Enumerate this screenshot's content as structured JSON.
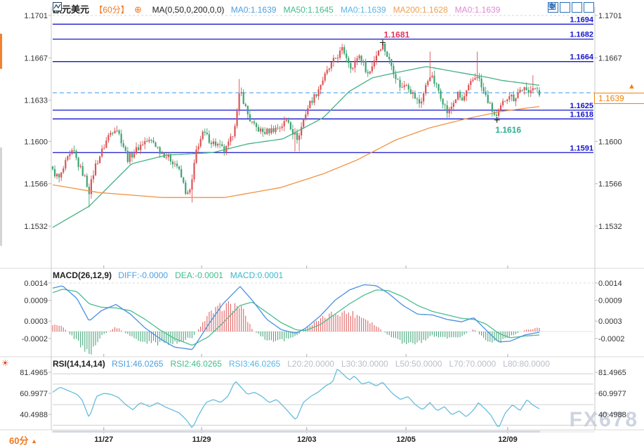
{
  "header": {
    "symbol": "欧元美元",
    "timeframe": "【60分】",
    "add_indicator_icon": "circled-plus",
    "chart_type_icon": "line-chart",
    "ma_label": "MA(0,50,0,200,0,0)",
    "ma_items": [
      {
        "name": "ma0-value",
        "text": "MA0:1.1639",
        "color": "#4d9fe0"
      },
      {
        "name": "ma50-value",
        "text": "MA50:1.1645",
        "color": "#41bd8c"
      },
      {
        "name": "ma0b-value",
        "text": "MA0:1.1639",
        "color": "#56b6e8"
      },
      {
        "name": "ma200-value",
        "text": "MA200:1.1628",
        "color": "#f0a04e"
      },
      {
        "name": "ma0c-value",
        "text": "MA0:1.1639",
        "color": "#e08ad2"
      }
    ]
  },
  "toolbar": {
    "icons": [
      "crosshair",
      "pane-down",
      "pane-up",
      "popout"
    ]
  },
  "macd_header": {
    "label": "MACD(26,12,9)",
    "items": [
      {
        "name": "diff-value",
        "text": "DIFF:-0.0000",
        "color": "#4d9fe0"
      },
      {
        "name": "dea-value",
        "text": "DEA:-0.0001",
        "color": "#41bd8c"
      },
      {
        "name": "macd-value",
        "text": "MACD:0.0001",
        "color": "#38b8cc"
      }
    ]
  },
  "rsi_header": {
    "label": "RSI(14,14,14)",
    "items": [
      {
        "name": "rsi1-value",
        "text": "RSI1:46.0265",
        "color": "#4d9fe0"
      },
      {
        "name": "rsi2-value",
        "text": "RSI2:46.0265",
        "color": "#41bd8c"
      },
      {
        "name": "rsi3-value",
        "text": "RSI3:46.0265",
        "color": "#56b6e8"
      },
      {
        "name": "l20-level",
        "text": "L20:20.0000",
        "color": "#b9bec6"
      },
      {
        "name": "l30-level",
        "text": "L30:30.0000",
        "color": "#b9bec6"
      },
      {
        "name": "l50-level",
        "text": "L50:50.0000",
        "color": "#b9bec6"
      },
      {
        "name": "l70-level",
        "text": "L70:70.0000",
        "color": "#b9bec6"
      },
      {
        "name": "l80-level",
        "text": "L80:80.0000",
        "color": "#b9bec6"
      }
    ]
  },
  "price_box": {
    "value": "1.1639",
    "color": "#f5820a",
    "arrow": "▲"
  },
  "footer": {
    "timeframe_label": "60分",
    "arrow": "▲"
  },
  "watermark": "FX678",
  "colors": {
    "up": "#dd5356",
    "down": "#3ea473",
    "ma50": "#44b184",
    "ma200": "#f09344",
    "level_blue": "#1414cc",
    "dashed_price": "#4da3e8",
    "diff_line": "#4a90e0",
    "dea_line": "#4cbd8e",
    "hist_pos": "#e06464",
    "hist_neg": "#4aa87c",
    "rsi_line": "#66bede",
    "axis_text": "#333333",
    "grid": "#d8d8d8"
  },
  "chart_data": {
    "type": "candlestick",
    "symbol": "EUR/USD 欧元美元",
    "interval_minutes": 60,
    "panes": [
      "price",
      "MACD",
      "RSI"
    ],
    "price_axis_ticks": [
      1.1701,
      1.1667,
      1.1633,
      1.16,
      1.1566,
      1.1532
    ],
    "price_axis_ticks_right": [
      1.1701,
      1.1667,
      1.16,
      1.1566,
      1.1532
    ],
    "levels": [
      1.1694,
      1.1682,
      1.1664,
      1.1625,
      1.1618,
      1.1591
    ],
    "current_price": 1.1639,
    "high_annotation": {
      "price": 1.1681,
      "x_frac": 0.678
    },
    "low_annotation": {
      "price": 1.1616,
      "x_frac": 0.913
    },
    "x_dates": [
      [
        "11/27",
        0.105
      ],
      [
        "11/29",
        0.306
      ],
      [
        "12/03",
        0.522
      ],
      [
        "12/05",
        0.726
      ],
      [
        "12/09",
        0.935
      ]
    ],
    "candles_n": 228,
    "close_anchors": [
      [
        0.0,
        1.1576
      ],
      [
        0.014,
        1.157
      ],
      [
        0.029,
        1.1585
      ],
      [
        0.043,
        1.1592
      ],
      [
        0.053,
        1.1581
      ],
      [
        0.065,
        1.1572
      ],
      [
        0.075,
        1.156
      ],
      [
        0.087,
        1.158
      ],
      [
        0.101,
        1.1592
      ],
      [
        0.115,
        1.1605
      ],
      [
        0.13,
        1.1612
      ],
      [
        0.144,
        1.1598
      ],
      [
        0.154,
        1.1586
      ],
      [
        0.169,
        1.1592
      ],
      [
        0.188,
        1.16
      ],
      [
        0.206,
        1.16
      ],
      [
        0.221,
        1.1592
      ],
      [
        0.238,
        1.1587
      ],
      [
        0.255,
        1.1581
      ],
      [
        0.267,
        1.1568
      ],
      [
        0.276,
        1.1556
      ],
      [
        0.284,
        1.1562
      ],
      [
        0.296,
        1.1595
      ],
      [
        0.31,
        1.1607
      ],
      [
        0.325,
        1.16
      ],
      [
        0.339,
        1.1597
      ],
      [
        0.354,
        1.1592
      ],
      [
        0.368,
        1.1603
      ],
      [
        0.38,
        1.1625
      ],
      [
        0.385,
        1.1642
      ],
      [
        0.394,
        1.163
      ],
      [
        0.404,
        1.1618
      ],
      [
        0.414,
        1.1612
      ],
      [
        0.433,
        1.1607
      ],
      [
        0.455,
        1.161
      ],
      [
        0.469,
        1.1612
      ],
      [
        0.483,
        1.1618
      ],
      [
        0.495,
        1.1606
      ],
      [
        0.505,
        1.1602
      ],
      [
        0.515,
        1.1618
      ],
      [
        0.527,
        1.163
      ],
      [
        0.541,
        1.1638
      ],
      [
        0.553,
        1.1648
      ],
      [
        0.563,
        1.1655
      ],
      [
        0.573,
        1.1662
      ],
      [
        0.584,
        1.1668
      ],
      [
        0.596,
        1.1674
      ],
      [
        0.606,
        1.1666
      ],
      [
        0.616,
        1.1658
      ],
      [
        0.628,
        1.167
      ],
      [
        0.639,
        1.1662
      ],
      [
        0.649,
        1.1653
      ],
      [
        0.659,
        1.1664
      ],
      [
        0.671,
        1.1675
      ],
      [
        0.678,
        1.1678
      ],
      [
        0.688,
        1.1668
      ],
      [
        0.697,
        1.166
      ],
      [
        0.707,
        1.165
      ],
      [
        0.717,
        1.1642
      ],
      [
        0.726,
        1.1648
      ],
      [
        0.736,
        1.164
      ],
      [
        0.746,
        1.1634
      ],
      [
        0.755,
        1.163
      ],
      [
        0.765,
        1.1642
      ],
      [
        0.775,
        1.1654
      ],
      [
        0.783,
        1.1648
      ],
      [
        0.794,
        1.164
      ],
      [
        0.804,
        1.163
      ],
      [
        0.812,
        1.1622
      ],
      [
        0.822,
        1.163
      ],
      [
        0.833,
        1.1638
      ],
      [
        0.841,
        1.1632
      ],
      [
        0.851,
        1.164
      ],
      [
        0.861,
        1.1648
      ],
      [
        0.873,
        1.1654
      ],
      [
        0.882,
        1.1642
      ],
      [
        0.89,
        1.1636
      ],
      [
        0.899,
        1.1628
      ],
      [
        0.909,
        1.162
      ],
      [
        0.913,
        1.1619
      ],
      [
        0.919,
        1.1626
      ],
      [
        0.928,
        1.1633
      ],
      [
        0.938,
        1.1638
      ],
      [
        0.948,
        1.1634
      ],
      [
        0.957,
        1.164
      ],
      [
        0.967,
        1.1643
      ],
      [
        0.977,
        1.1637
      ],
      [
        0.985,
        1.1646
      ],
      [
        1.0,
        1.1638
      ]
    ],
    "spikes": [
      {
        "f": 0.075,
        "low": 1.1547
      },
      {
        "f": 0.287,
        "low": 1.1551
      },
      {
        "f": 0.385,
        "high": 1.165
      },
      {
        "f": 0.497,
        "low": 1.1592
      },
      {
        "f": 0.508,
        "low": 1.1592
      },
      {
        "f": 0.678,
        "high": 1.1681
      },
      {
        "f": 0.775,
        "high": 1.1672
      },
      {
        "f": 0.873,
        "high": 1.1672
      },
      {
        "f": 0.913,
        "low": 1.1616
      },
      {
        "f": 0.985,
        "high": 1.1653
      }
    ],
    "ma50": {
      "value": 1.1645,
      "anchors": [
        [
          0,
          1.1531
        ],
        [
          0.075,
          1.1548
        ],
        [
          0.162,
          1.1582
        ],
        [
          0.234,
          1.1589
        ],
        [
          0.329,
          1.1591
        ],
        [
          0.401,
          1.1598
        ],
        [
          0.473,
          1.1602
        ],
        [
          0.522,
          1.1612
        ],
        [
          0.556,
          1.1619
        ],
        [
          0.609,
          1.164
        ],
        [
          0.657,
          1.1651
        ],
        [
          0.704,
          1.1655
        ],
        [
          0.768,
          1.166
        ],
        [
          0.825,
          1.1656
        ],
        [
          0.898,
          1.1651
        ],
        [
          0.921,
          1.1649
        ],
        [
          1,
          1.1645
        ]
      ]
    },
    "ma200": {
      "value": 1.1628,
      "anchors": [
        [
          0.003,
          1.1565
        ],
        [
          0.094,
          1.1559
        ],
        [
          0.224,
          1.1555
        ],
        [
          0.354,
          1.1555
        ],
        [
          0.469,
          1.1563
        ],
        [
          0.556,
          1.1574
        ],
        [
          0.625,
          1.1585
        ],
        [
          0.704,
          1.1601
        ],
        [
          0.776,
          1.1611
        ],
        [
          0.848,
          1.1618
        ],
        [
          0.921,
          1.1624
        ],
        [
          1,
          1.1628
        ]
      ]
    },
    "macd": {
      "params": [
        26,
        12,
        9
      ],
      "diff": -0.0,
      "dea": -0.0001,
      "macd": 0.0001,
      "axis_ticks": [
        0.0014,
        0.0009,
        0.0003,
        -0.0002
      ],
      "anchors": [
        [
          0.0,
          0.00125,
          0.00112
        ],
        [
          0.02,
          0.00132,
          0.00122
        ],
        [
          0.05,
          0.00095,
          0.00115
        ],
        [
          0.075,
          0.0003,
          0.0008
        ],
        [
          0.1,
          0.0006,
          0.0007
        ],
        [
          0.13,
          0.00078,
          0.00068
        ],
        [
          0.16,
          0.0005,
          0.0006
        ],
        [
          0.19,
          0.0001,
          0.00035
        ],
        [
          0.22,
          -0.0002,
          5e-05
        ],
        [
          0.25,
          -0.00045,
          -0.0002
        ],
        [
          0.287,
          -0.00052,
          -0.0004
        ],
        [
          0.32,
          0.0002,
          -0.00015
        ],
        [
          0.35,
          0.0008,
          0.00025
        ],
        [
          0.385,
          0.0013,
          0.00075
        ],
        [
          0.41,
          0.0009,
          0.00085
        ],
        [
          0.44,
          0.00035,
          0.00055
        ],
        [
          0.47,
          5e-05,
          0.00025
        ],
        [
          0.5,
          -5e-05,
          5e-05
        ],
        [
          0.52,
          0.0001,
          3e-05
        ],
        [
          0.55,
          0.00045,
          0.0002
        ],
        [
          0.58,
          0.0009,
          0.0005
        ],
        [
          0.61,
          0.0012,
          0.0008
        ],
        [
          0.64,
          0.00135,
          0.00105
        ],
        [
          0.665,
          0.00132,
          0.0012
        ],
        [
          0.69,
          0.0011,
          0.00118
        ],
        [
          0.72,
          0.00075,
          0.001
        ],
        [
          0.75,
          0.0005,
          0.00075
        ],
        [
          0.78,
          0.00048,
          0.00058
        ],
        [
          0.81,
          0.00035,
          0.00048
        ],
        [
          0.84,
          0.00028,
          0.00038
        ],
        [
          0.865,
          0.0004,
          0.00035
        ],
        [
          0.89,
          5e-05,
          0.00022
        ],
        [
          0.916,
          -0.0003,
          -5e-05
        ],
        [
          0.94,
          -0.00028,
          -0.00018
        ],
        [
          0.97,
          -0.0001,
          -0.00013
        ],
        [
          1.0,
          -2e-05,
          -0.0001
        ]
      ]
    },
    "rsi": {
      "values": [
        46.0265,
        46.0265,
        46.0265
      ],
      "axis_ticks": [
        81.4965,
        60.9977,
        40.4988
      ],
      "guide_levels": [
        80,
        70,
        50,
        30
      ],
      "anchors": [
        [
          0.0,
          62
        ],
        [
          0.015,
          67
        ],
        [
          0.03,
          64
        ],
        [
          0.05,
          60
        ],
        [
          0.06,
          55
        ],
        [
          0.075,
          37
        ],
        [
          0.09,
          58
        ],
        [
          0.105,
          61
        ],
        [
          0.12,
          60
        ],
        [
          0.135,
          57
        ],
        [
          0.15,
          50
        ],
        [
          0.165,
          45
        ],
        [
          0.18,
          52
        ],
        [
          0.2,
          48
        ],
        [
          0.215,
          52
        ],
        [
          0.23,
          48
        ],
        [
          0.245,
          45
        ],
        [
          0.26,
          42
        ],
        [
          0.275,
          35
        ],
        [
          0.287,
          27
        ],
        [
          0.3,
          40
        ],
        [
          0.315,
          52
        ],
        [
          0.33,
          55
        ],
        [
          0.345,
          52
        ],
        [
          0.36,
          58
        ],
        [
          0.375,
          73
        ],
        [
          0.385,
          68
        ],
        [
          0.4,
          60
        ],
        [
          0.415,
          62
        ],
        [
          0.43,
          58
        ],
        [
          0.445,
          52
        ],
        [
          0.46,
          55
        ],
        [
          0.475,
          48
        ],
        [
          0.49,
          40
        ],
        [
          0.5,
          35
        ],
        [
          0.515,
          52
        ],
        [
          0.53,
          58
        ],
        [
          0.545,
          62
        ],
        [
          0.56,
          68
        ],
        [
          0.575,
          72
        ],
        [
          0.585,
          85
        ],
        [
          0.6,
          78
        ],
        [
          0.61,
          74
        ],
        [
          0.62,
          78
        ],
        [
          0.635,
          70
        ],
        [
          0.65,
          72
        ],
        [
          0.665,
          68
        ],
        [
          0.678,
          72
        ],
        [
          0.69,
          65
        ],
        [
          0.7,
          60
        ],
        [
          0.715,
          55
        ],
        [
          0.73,
          58
        ],
        [
          0.745,
          50
        ],
        [
          0.76,
          45
        ],
        [
          0.775,
          52
        ],
        [
          0.79,
          44
        ],
        [
          0.805,
          48
        ],
        [
          0.82,
          40
        ],
        [
          0.835,
          44
        ],
        [
          0.85,
          38
        ],
        [
          0.865,
          45
        ],
        [
          0.875,
          52
        ],
        [
          0.89,
          45
        ],
        [
          0.9,
          40
        ],
        [
          0.916,
          27
        ],
        [
          0.93,
          42
        ],
        [
          0.945,
          50
        ],
        [
          0.96,
          44
        ],
        [
          0.975,
          55
        ],
        [
          0.985,
          50
        ],
        [
          1.0,
          46
        ]
      ]
    }
  }
}
